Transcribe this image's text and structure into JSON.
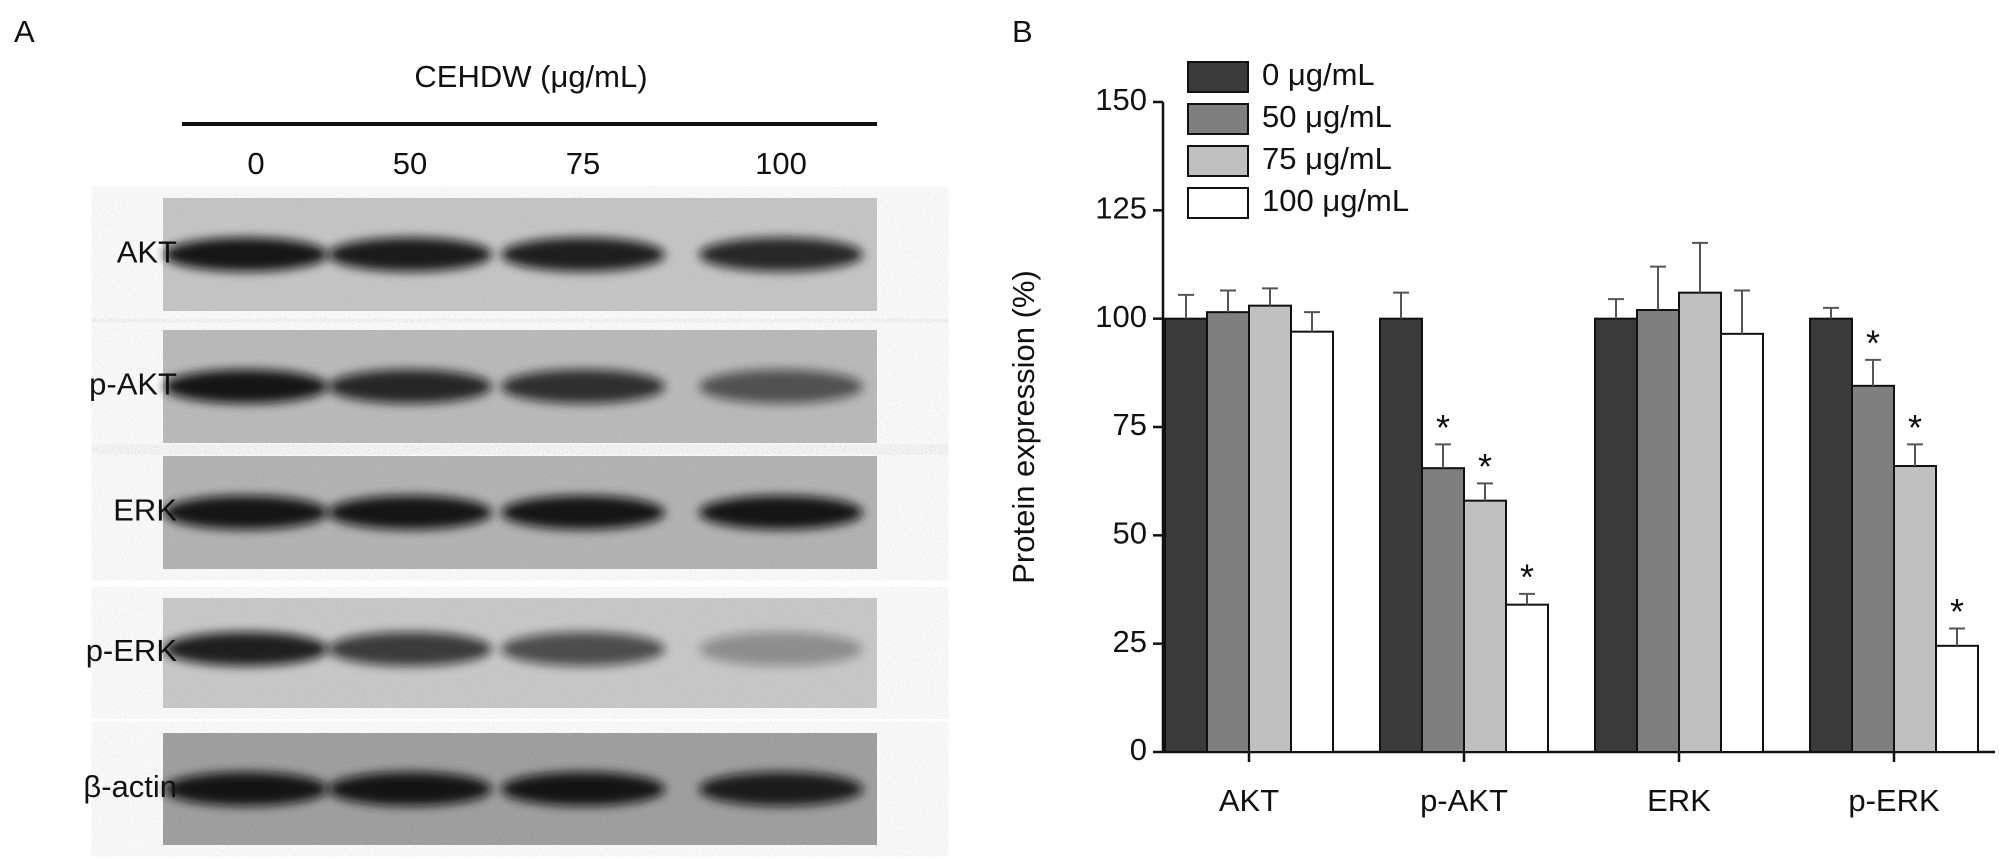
{
  "panel_a": {
    "letter": "A",
    "header": "CEHDW (μg/mL)",
    "lanes": [
      "0",
      "50",
      "75",
      "100"
    ],
    "rows": [
      "AKT",
      "p-AKT",
      "ERK",
      "p-ERK",
      "β-actin"
    ]
  },
  "chart_data": {
    "type": "bar",
    "letter": "B",
    "ylabel": "Protein expression (%)",
    "categories": [
      "AKT",
      "p-AKT",
      "ERK",
      "p-ERK"
    ],
    "series": [
      {
        "name": "0 μg/mL",
        "color": "#3a3a3a",
        "values": [
          100,
          100,
          100,
          100
        ],
        "errors": [
          5.5,
          6,
          4.5,
          2.5
        ],
        "asterisks": [
          null,
          null,
          null,
          null
        ]
      },
      {
        "name": "50 μg/mL",
        "color": "#7f7f7f",
        "values": [
          101.5,
          65.5,
          102,
          84.5
        ],
        "errors": [
          5,
          5.5,
          10,
          6
        ],
        "asterisks": [
          null,
          "*",
          null,
          "*"
        ]
      },
      {
        "name": "75 μg/mL",
        "color": "#c0c0c0",
        "values": [
          103,
          58,
          106,
          66
        ],
        "errors": [
          4,
          4,
          11.5,
          5
        ],
        "asterisks": [
          null,
          "*",
          null,
          "*"
        ]
      },
      {
        "name": "100 μg/mL",
        "color": "#ffffff",
        "values": [
          97,
          34,
          96.5,
          24.5
        ],
        "errors": [
          4.5,
          2.5,
          10,
          4
        ],
        "asterisks": [
          null,
          "*",
          null,
          "*"
        ]
      }
    ],
    "ylim": [
      0,
      150
    ],
    "yticks": [
      0,
      25,
      50,
      75,
      100,
      125,
      150
    ],
    "legend": "upper left"
  }
}
